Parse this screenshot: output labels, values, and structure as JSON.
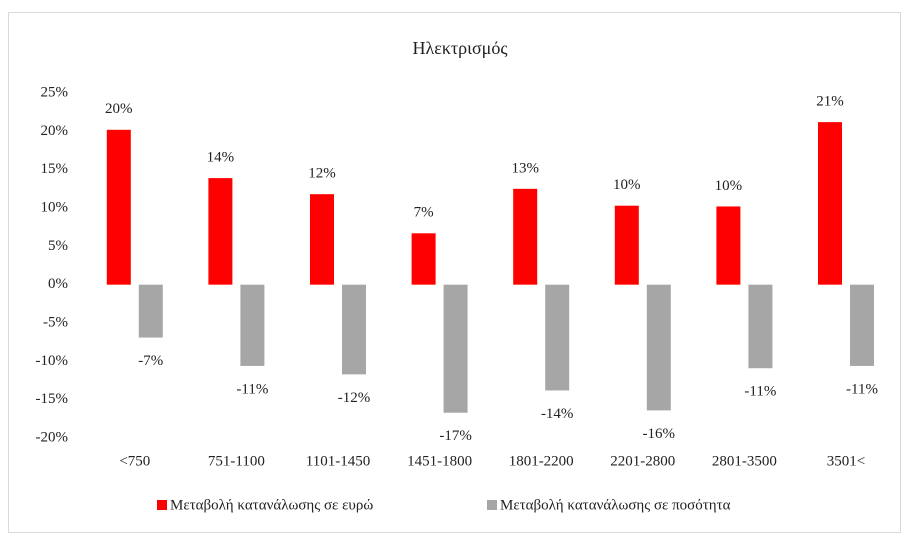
{
  "chart_data": {
    "type": "bar",
    "title": "Ηλεκτρισμός",
    "categories": [
      "<750",
      "751-1100",
      "1101-1450",
      "1451-1800",
      "1801-2200",
      "2201-2800",
      "2801-3500",
      "3501<"
    ],
    "series": [
      {
        "name": "Μεταβολή κατανάλωσης σε ευρώ",
        "color": "#ff0000",
        "values": [
          20.2,
          13.9,
          11.8,
          6.7,
          12.5,
          10.3,
          10.2,
          21.2
        ],
        "value_labels": [
          "20%",
          "14%",
          "12%",
          "7%",
          "13%",
          "10%",
          "10%",
          "21%"
        ]
      },
      {
        "name": "Μεταβολή κατανάλωσης σε ποσότητα",
        "color": "#a6a6a6",
        "values": [
          -6.9,
          -10.6,
          -11.7,
          -16.7,
          -13.8,
          -16.4,
          -10.9,
          -10.6
        ],
        "value_labels": [
          "-7%",
          "-11%",
          "-12%",
          "-17%",
          "-14%",
          "-16%",
          "-11%",
          "-11%"
        ]
      }
    ],
    "ylim": [
      -20,
      25
    ],
    "yticks": [
      {
        "value": -20,
        "label": "-20%"
      },
      {
        "value": -15,
        "label": "-15%"
      },
      {
        "value": -10,
        "label": "-10%"
      },
      {
        "value": -5,
        "label": "-5%"
      },
      {
        "value": 0,
        "label": "0%"
      },
      {
        "value": 5,
        "label": "5%"
      },
      {
        "value": 10,
        "label": "10%"
      },
      {
        "value": 15,
        "label": "15%"
      },
      {
        "value": 20,
        "label": "20%"
      },
      {
        "value": 25,
        "label": "25%"
      }
    ],
    "grid": false,
    "legend": "bottom"
  }
}
